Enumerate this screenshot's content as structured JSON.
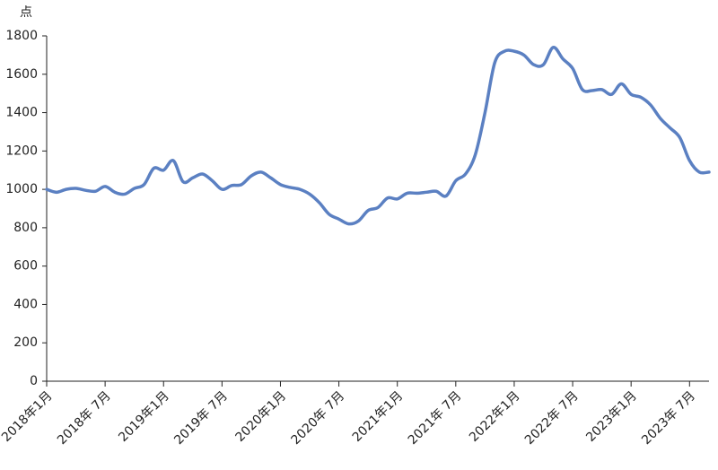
{
  "chart_data": {
    "type": "line",
    "y_label": "点",
    "categories": [
      "2018年1月",
      null,
      null,
      null,
      null,
      null,
      "2018年 7月",
      null,
      null,
      null,
      null,
      null,
      "2019年1月",
      null,
      null,
      null,
      null,
      null,
      "2019年 7月",
      null,
      null,
      null,
      null,
      null,
      "2020年1月",
      null,
      null,
      null,
      null,
      null,
      "2020年 7月",
      null,
      null,
      null,
      null,
      null,
      "2021年1月",
      null,
      null,
      null,
      null,
      null,
      "2021年 7月",
      null,
      null,
      null,
      null,
      null,
      "2022年1月",
      null,
      null,
      null,
      null,
      null,
      "2022年 7月",
      null,
      null,
      null,
      null,
      null,
      "2023年1月",
      null,
      null,
      null,
      null,
      null,
      "2023年 7月",
      null,
      null
    ],
    "series": [
      {
        "color": "#5b80c2",
        "values": [
          1000,
          985,
          1000,
          1005,
          995,
          990,
          1015,
          985,
          975,
          1005,
          1025,
          1110,
          1100,
          1150,
          1040,
          1060,
          1080,
          1045,
          1000,
          1020,
          1025,
          1070,
          1090,
          1060,
          1025,
          1010,
          1000,
          975,
          930,
          870,
          845,
          820,
          835,
          890,
          905,
          955,
          950,
          980,
          980,
          985,
          990,
          965,
          1045,
          1080,
          1180,
          1400,
          1660,
          1720,
          1720,
          1700,
          1650,
          1650,
          1740,
          1680,
          1630,
          1520,
          1515,
          1520,
          1495,
          1550,
          1495,
          1480,
          1440,
          1370,
          1320,
          1270,
          1150,
          1090,
          1090
        ]
      }
    ],
    "ylim": [
      0,
      1800
    ],
    "yticks": [
      0,
      200,
      400,
      600,
      800,
      1000,
      1200,
      1400,
      1600,
      1800
    ]
  }
}
